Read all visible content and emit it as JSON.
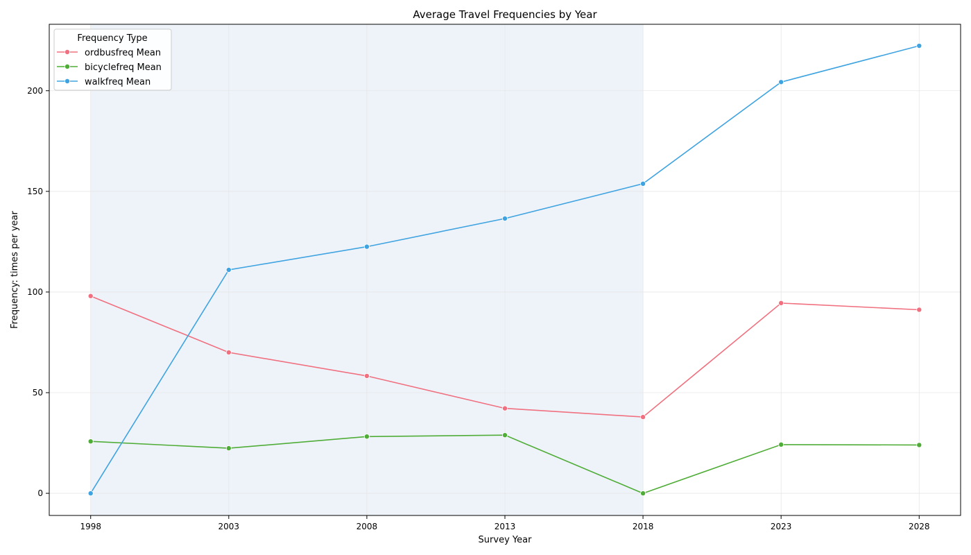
{
  "chart_data": {
    "type": "line",
    "title": "Average Travel Frequencies by Year",
    "xlabel": "Survey Year",
    "ylabel": "Frequency: times per year",
    "x": [
      1998,
      2003,
      2008,
      2013,
      2018,
      2023,
      2028
    ],
    "xlim": [
      1996.5,
      2029.5
    ],
    "ylim": [
      -11,
      233
    ],
    "yticks": [
      0,
      50,
      100,
      150,
      200
    ],
    "grid": true,
    "legend_title": "Frequency Type",
    "legend_position": "top-left",
    "shaded_range": [
      1998,
      2018
    ],
    "shade_color": "#eef3fa",
    "series": [
      {
        "name": "ordbusfreq Mean",
        "color": "#f0707f",
        "values": [
          98.0,
          70.0,
          58.3,
          42.2,
          37.9,
          94.5,
          91.2
        ]
      },
      {
        "name": "bicyclefreq Mean",
        "color": "#4fad37",
        "values": [
          25.8,
          22.4,
          28.2,
          28.9,
          0.0,
          24.2,
          24.0
        ]
      },
      {
        "name": "walkfreq Mean",
        "color": "#3ea3e0",
        "values": [
          0.0,
          111.0,
          122.5,
          136.5,
          153.8,
          204.3,
          222.3
        ]
      }
    ]
  }
}
